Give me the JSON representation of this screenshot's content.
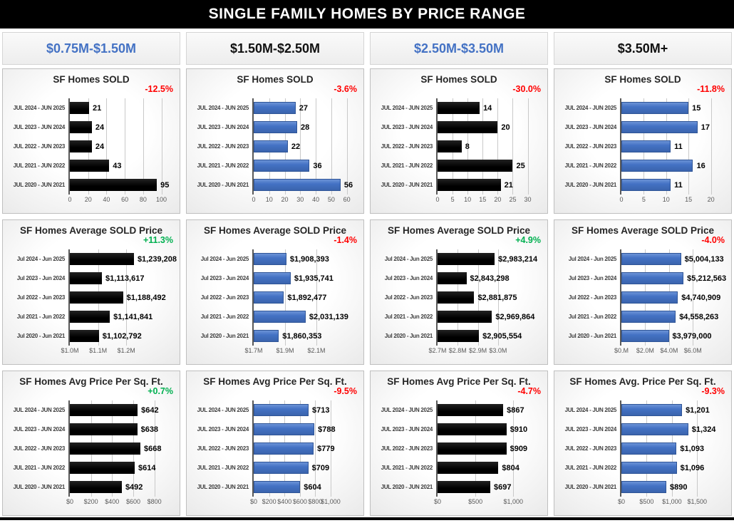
{
  "title": "SINGLE FAMILY HOMES BY PRICE RANGE",
  "header": {
    "ranges": [
      {
        "text": "$0.75M-$1.50M",
        "color": "#4472c4"
      },
      {
        "text": "$1.50M-$2.50M",
        "color": "#111111"
      },
      {
        "text": "$2.50M-$3.50M",
        "color": "#4472c4"
      },
      {
        "text": "$3.50M+",
        "color": "#111111"
      }
    ]
  },
  "colors": {
    "accent_blue": "#4472c4",
    "bar_black": "#000000",
    "negative": "#ff0000",
    "positive": "#00b050"
  },
  "categories_upper": [
    "JUL 2024 - JUN 2025",
    "JUL 2023 - JUN 2024",
    "JUL 2022 - JUN 2023",
    "JUL 2021 - JUN 2022",
    "JUL 2020 - JUN 2021"
  ],
  "categories_mixed": [
    "Jul 2024 - Jun 2025",
    "Jul 2023 - Jun 2024",
    "Jul 2022 - Jun 2023",
    "Jul 2021 - Jun 2022",
    "Jul 2020 - Jun 2021"
  ],
  "chart_data": [
    {
      "type": "bar",
      "title": "SF Homes SOLD",
      "change_label": "-12.5%",
      "change_color": "#ff0000",
      "bar_color": "black",
      "case": "upper",
      "values": [
        21,
        24,
        24,
        43,
        95
      ],
      "value_labels": [
        "21",
        "24",
        "24",
        "43",
        "95"
      ],
      "xlim": [
        0,
        105
      ],
      "plot_frac": 0.9,
      "grid": true,
      "legend": "none",
      "x_ticks": [
        {
          "label": "0",
          "value": 0
        },
        {
          "label": "20",
          "value": 20
        },
        {
          "label": "40",
          "value": 40
        },
        {
          "label": "60",
          "value": 60
        },
        {
          "label": "80",
          "value": 80
        },
        {
          "label": "100",
          "value": 100
        }
      ]
    },
    {
      "type": "bar",
      "title": "SF Homes SOLD",
      "change_label": "-3.6%",
      "change_color": "#ff0000",
      "bar_color": "blue",
      "case": "upper",
      "values": [
        27,
        28,
        22,
        36,
        56
      ],
      "value_labels": [
        "27",
        "28",
        "22",
        "36",
        "56"
      ],
      "xlim": [
        0,
        62
      ],
      "plot_frac": 0.9,
      "grid": true,
      "legend": "none",
      "x_ticks": [
        {
          "label": "0",
          "value": 0
        },
        {
          "label": "10",
          "value": 10
        },
        {
          "label": "20",
          "value": 20
        },
        {
          "label": "30",
          "value": 30
        },
        {
          "label": "40",
          "value": 40
        },
        {
          "label": "50",
          "value": 50
        },
        {
          "label": "60",
          "value": 60
        }
      ]
    },
    {
      "type": "bar",
      "title": "SF Homes SOLD",
      "change_label": "-30.0%",
      "change_color": "#ff0000",
      "bar_color": "black",
      "case": "upper",
      "values": [
        14,
        20,
        8,
        25,
        21
      ],
      "value_labels": [
        "14",
        "20",
        "8",
        "25",
        "21"
      ],
      "xlim": [
        0,
        32
      ],
      "plot_frac": 0.9,
      "grid": true,
      "legend": "none",
      "x_ticks": [
        {
          "label": "0",
          "value": 0
        },
        {
          "label": "5",
          "value": 5
        },
        {
          "label": "10",
          "value": 10
        },
        {
          "label": "15",
          "value": 15
        },
        {
          "label": "20",
          "value": 20
        },
        {
          "label": "25",
          "value": 25
        },
        {
          "label": "30",
          "value": 30
        }
      ]
    },
    {
      "type": "bar",
      "title": "SF Homes SOLD",
      "change_label": "-11.8%",
      "change_color": "#ff0000",
      "bar_color": "blue",
      "case": "upper",
      "values": [
        15,
        17,
        11,
        16,
        11
      ],
      "value_labels": [
        "15",
        "17",
        "11",
        "16",
        "11"
      ],
      "xlim": [
        0,
        21.5
      ],
      "plot_frac": 0.9,
      "grid": true,
      "legend": "none",
      "x_ticks": [
        {
          "label": "0",
          "value": 0
        },
        {
          "label": "5",
          "value": 5
        },
        {
          "label": "10",
          "value": 10
        },
        {
          "label": "15",
          "value": 15
        },
        {
          "label": "20",
          "value": 20
        }
      ]
    },
    {
      "type": "bar",
      "title": "SF Homes Average SOLD Price",
      "change_label": "+11.3%",
      "change_color": "#00b050",
      "bar_color": "black",
      "case": "mixed",
      "values": [
        1239208,
        1113617,
        1188492,
        1141841,
        1102792
      ],
      "value_labels": [
        "$1,239,208",
        "$1,113,617",
        "$1,188,492",
        "$1,141,841",
        "$1,102,792"
      ],
      "xlim": [
        1000000,
        1250000
      ],
      "plot_frac": 0.66,
      "grid": true,
      "legend": "none",
      "x_ticks": [
        {
          "label": "$1.0M",
          "value": 1000000
        },
        {
          "label": "$1.1M",
          "value": 1100000
        },
        {
          "label": "$1.2M",
          "value": 1200000
        }
      ]
    },
    {
      "type": "bar",
      "title": "SF Homes Average SOLD Price",
      "change_label": "-1.4%",
      "change_color": "#ff0000",
      "bar_color": "blue",
      "case": "mixed",
      "values": [
        1908393,
        1935741,
        1892477,
        2031139,
        1860353
      ],
      "value_labels": [
        "$1,908,393",
        "$1,935,741",
        "$1,892,477",
        "$2,031,139",
        "$1,860,353"
      ],
      "xlim": [
        1700000,
        2150000
      ],
      "plot_frac": 0.66,
      "grid": true,
      "legend": "none",
      "x_ticks": [
        {
          "label": "$1.7M",
          "value": 1700000
        },
        {
          "label": "$1.9M",
          "value": 1900000
        },
        {
          "label": "$2.1M",
          "value": 2100000
        }
      ]
    },
    {
      "type": "bar",
      "title": "SF Homes Average SOLD Price",
      "change_label": "+4.9%",
      "change_color": "#00b050",
      "bar_color": "black",
      "case": "mixed",
      "values": [
        2983214,
        2843298,
        2881875,
        2969864,
        2905554
      ],
      "value_labels": [
        "$2,983,214",
        "$2,843,298",
        "$2,881,875",
        "$2,969,864",
        "$2,905,554"
      ],
      "xlim": [
        2700000,
        3050000
      ],
      "plot_frac": 0.66,
      "grid": true,
      "legend": "none",
      "x_ticks": [
        {
          "label": "$2.7M",
          "value": 2700000
        },
        {
          "label": "$2.8M",
          "value": 2800000
        },
        {
          "label": "$2.9M",
          "value": 2900000
        },
        {
          "label": "$3.0M",
          "value": 3000000
        }
      ]
    },
    {
      "type": "bar",
      "title": "SF Homes Average SOLD Price",
      "change_label": "-4.0%",
      "change_color": "#ff0000",
      "bar_color": "blue",
      "case": "mixed",
      "values": [
        5004133,
        5212563,
        4740909,
        4558263,
        3979000
      ],
      "value_labels": [
        "$5,004,133",
        "$5,212,563",
        "$4,740,909",
        "$4,558,263",
        "$3,979,000"
      ],
      "xlim": [
        0,
        7000000
      ],
      "plot_frac": 0.78,
      "grid": true,
      "legend": "none",
      "x_ticks": [
        {
          "label": "$0.M",
          "value": 0
        },
        {
          "label": "$2.0M",
          "value": 2000000
        },
        {
          "label": "$4.0M",
          "value": 4000000
        },
        {
          "label": "$6.0M",
          "value": 6000000
        }
      ]
    },
    {
      "type": "bar",
      "title": "SF Homes Avg Price Per Sq. Ft.",
      "change_label": "+0.7%",
      "change_color": "#00b050",
      "bar_color": "black",
      "case": "upper",
      "values": [
        642,
        638,
        668,
        614,
        492
      ],
      "value_labels": [
        "$642",
        "$638",
        "$668",
        "$614",
        "$492"
      ],
      "xlim": [
        0,
        860
      ],
      "plot_frac": 0.85,
      "grid": true,
      "legend": "none",
      "x_ticks": [
        {
          "label": "$0",
          "value": 0
        },
        {
          "label": "$200",
          "value": 200
        },
        {
          "label": "$400",
          "value": 400
        },
        {
          "label": "$600",
          "value": 600
        },
        {
          "label": "$800",
          "value": 800
        }
      ]
    },
    {
      "type": "bar",
      "title": "SF Homes Avg Price Per Sq. Ft.",
      "change_label": "-9.5%",
      "change_color": "#ff0000",
      "bar_color": "blue",
      "case": "upper",
      "values": [
        713,
        788,
        779,
        709,
        604
      ],
      "value_labels": [
        "$713",
        "$788",
        "$779",
        "$709",
        "$604"
      ],
      "xlim": [
        0,
        1180
      ],
      "plot_frac": 0.85,
      "grid": true,
      "legend": "none",
      "x_ticks": [
        {
          "label": "$0",
          "value": 0
        },
        {
          "label": "$200",
          "value": 200
        },
        {
          "label": "$400",
          "value": 400
        },
        {
          "label": "$600",
          "value": 600
        },
        {
          "label": "$800",
          "value": 800
        },
        {
          "label": "$1,000",
          "value": 1000
        }
      ]
    },
    {
      "type": "bar",
      "title": "SF Homes Avg Price Per Sq. Ft.",
      "change_label": "-4.7%",
      "change_color": "#ff0000",
      "bar_color": "black",
      "case": "upper",
      "values": [
        867,
        910,
        909,
        804,
        697
      ],
      "value_labels": [
        "$867",
        "$910",
        "$909",
        "$804",
        "$697"
      ],
      "xlim": [
        0,
        1200
      ],
      "plot_frac": 0.85,
      "grid": true,
      "legend": "none",
      "x_ticks": [
        {
          "label": "$0",
          "value": 0
        },
        {
          "label": "$500",
          "value": 500
        },
        {
          "label": "$1,000",
          "value": 1000
        }
      ]
    },
    {
      "type": "bar",
      "title": "SF Homes Avg. Price Per Sq. Ft.",
      "change_label": "-9.3%",
      "change_color": "#ff0000",
      "bar_color": "blue",
      "case": "upper",
      "values": [
        1201,
        1324,
        1093,
        1096,
        890
      ],
      "value_labels": [
        "$1,201",
        "$1,324",
        "$1,093",
        "$1,096",
        "$890"
      ],
      "xlim": [
        0,
        1800
      ],
      "plot_frac": 0.85,
      "grid": true,
      "legend": "none",
      "x_ticks": [
        {
          "label": "$0",
          "value": 0
        },
        {
          "label": "$500",
          "value": 500
        },
        {
          "label": "$1,000",
          "value": 1000
        },
        {
          "label": "$1,500",
          "value": 1500
        }
      ]
    }
  ]
}
